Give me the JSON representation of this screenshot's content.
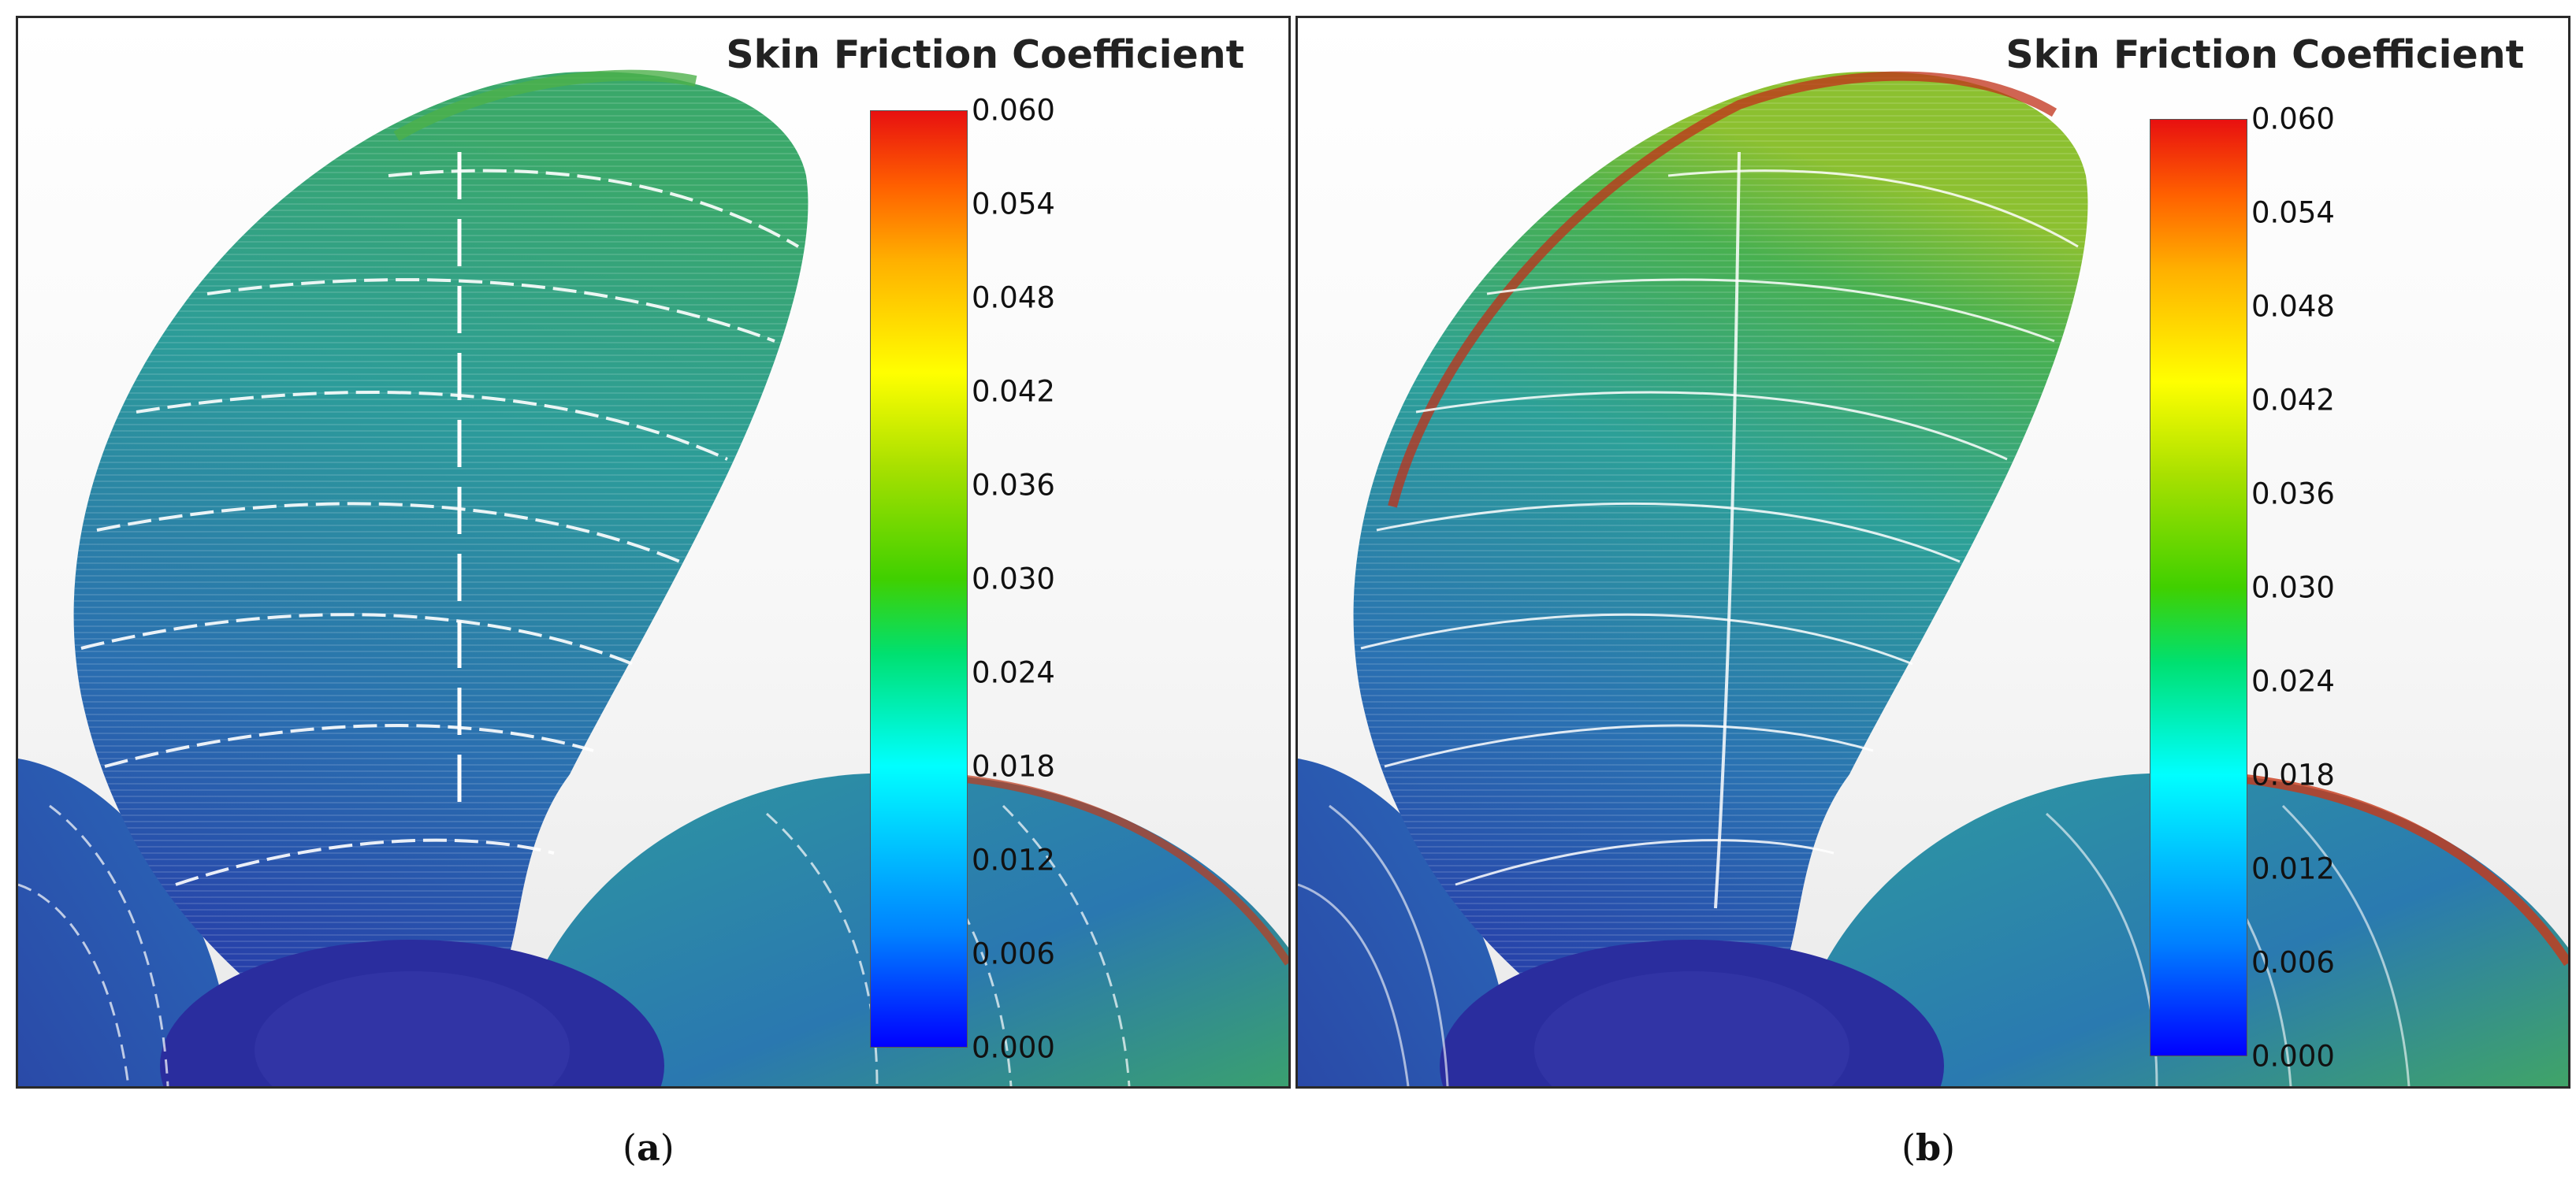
{
  "panels": [
    {
      "id": "a",
      "colorbar_title": "Skin Friction Coefficient",
      "colorbar_ticks": [
        "0.060",
        "0.054",
        "0.048",
        "0.042",
        "0.036",
        "0.030",
        "0.024",
        "0.018",
        "0.012",
        "0.006",
        "0.000"
      ],
      "caption_letter": "a"
    },
    {
      "id": "b",
      "colorbar_title": "Skin Friction Coefficient",
      "colorbar_ticks": [
        "0.060",
        "0.054",
        "0.048",
        "0.042",
        "0.036",
        "0.030",
        "0.024",
        "0.018",
        "0.012",
        "0.006",
        "0.000"
      ],
      "caption_letter": "b"
    }
  ],
  "colors": {
    "blade_root": "#2a3fa8",
    "blade_mid": "#2b8fa0",
    "blade_tip": "#3aa35e",
    "leading_edge_high": "#d84020",
    "hub": "#2a2d9e"
  },
  "icons": {
    "scene": "propeller-blade-render"
  }
}
